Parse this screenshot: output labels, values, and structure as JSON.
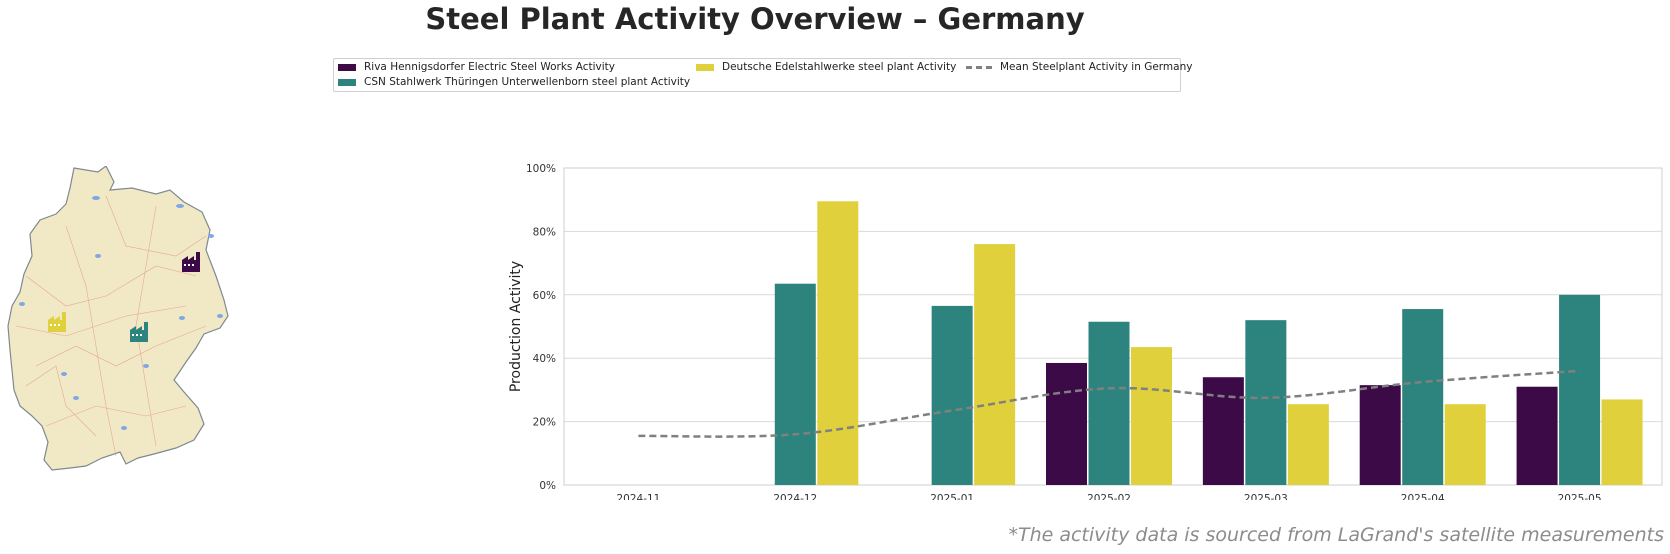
{
  "page": {
    "title": "Steel Plant Activity Overview – Germany",
    "footnote": "*The activity data is sourced from LaGrand's satellite measurements"
  },
  "legend": {
    "placement": "top-center",
    "items": [
      {
        "label": "Riva Hennigsdorfer Electric Steel Works Activity",
        "color": "#3b0a47",
        "kind": "bar"
      },
      {
        "label": "CSN Stahlwerk Thüringen Unterwellenborn steel plant Activity",
        "color": "#2d837d",
        "kind": "bar"
      },
      {
        "label": "Deutsche Edelstahlwerke steel plant Activity",
        "color": "#e0d03b",
        "kind": "bar"
      },
      {
        "label": "Mean Steelplant Activity in Germany",
        "color": "#808080",
        "kind": "dashed-line"
      }
    ]
  },
  "map": {
    "region": "Germany",
    "plant_icons": [
      {
        "name": "Riva Hennigsdorfer Electric Steel Works",
        "icon": "factory-icon",
        "color": "#3b0a47"
      },
      {
        "name": "CSN Stahlwerk Thüringen Unterwellenborn steel plant",
        "icon": "factory-icon",
        "color": "#2d837d"
      },
      {
        "name": "Deutsche Edelstahlwerke steel plant",
        "icon": "factory-icon",
        "color": "#e0d03b"
      }
    ]
  },
  "chart_data": {
    "type": "bar",
    "categories": [
      "2024-11",
      "2024-12",
      "2025-01",
      "2025-02",
      "2025-03",
      "2025-04",
      "2025-05"
    ],
    "ylabel": "Production Activity",
    "xlabel": "",
    "ylim": [
      0,
      100
    ],
    "yticks": [
      "0%",
      "20%",
      "40%",
      "60%",
      "80%",
      "100%"
    ],
    "grid": true,
    "series": [
      {
        "name": "Riva Hennigsdorfer Electric Steel Works Activity",
        "color": "#3b0a47",
        "values": [
          null,
          null,
          null,
          38.5,
          34,
          31.5,
          31
        ]
      },
      {
        "name": "CSN Stahlwerk Thüringen Unterwellenborn steel plant Activity",
        "color": "#2d837d",
        "values": [
          null,
          63.5,
          56.5,
          51.5,
          52,
          55.5,
          60
        ]
      },
      {
        "name": "Deutsche Edelstahlwerke steel plant Activity",
        "color": "#e0d03b",
        "values": [
          null,
          89.5,
          76,
          43.5,
          25.5,
          25.5,
          27
        ]
      }
    ],
    "mean_line": {
      "name": "Mean Steelplant Activity in Germany",
      "color": "#808080",
      "style": "dashed",
      "values": [
        15.5,
        16,
        23.5,
        30.5,
        27.5,
        32.5,
        36
      ]
    }
  }
}
